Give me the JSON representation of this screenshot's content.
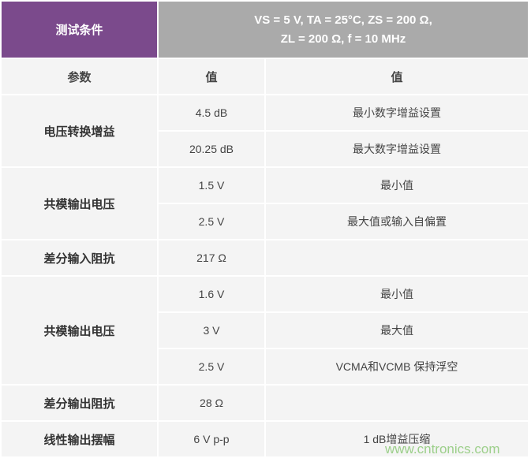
{
  "header": {
    "conditions_label": "测试条件",
    "conditions_line1": "VS = 5 V, TA = 25°C, ZS = 200 Ω,",
    "conditions_line2": "ZL = 200 Ω, f = 10 MHz"
  },
  "columns": [
    "参数",
    "值",
    "值"
  ],
  "groups": [
    {
      "param": "电压转换增益",
      "rows": [
        [
          "4.5 dB",
          "最小数字增益设置"
        ],
        [
          "20.25 dB",
          "最大数字增益设置"
        ]
      ]
    },
    {
      "param": "共模输出电压",
      "rows": [
        [
          "1.5 V",
          "最小值"
        ],
        [
          "2.5 V",
          "最大值或输入自偏置"
        ]
      ]
    },
    {
      "param": "差分输入阻抗",
      "rows": [
        [
          "217 Ω",
          ""
        ]
      ]
    },
    {
      "param": "共模输出电压",
      "rows": [
        [
          "1.6 V",
          "最小值"
        ],
        [
          "3 V",
          "最大值"
        ],
        [
          "2.5 V",
          "VCMA和VCMB 保持浮空"
        ]
      ]
    },
    {
      "param": "差分输出阻抗",
      "rows": [
        [
          "28 Ω",
          ""
        ]
      ]
    },
    {
      "param": "线性输出摆幅",
      "rows": [
        [
          "6 V p-p",
          "1 dB增益压缩"
        ]
      ]
    }
  ],
  "watermark": "www.cntronics.com",
  "colors": {
    "header_purple": "#7b4a8c",
    "header_gray": "#aaaaaa",
    "cell_bg": "#f4f4f4"
  }
}
